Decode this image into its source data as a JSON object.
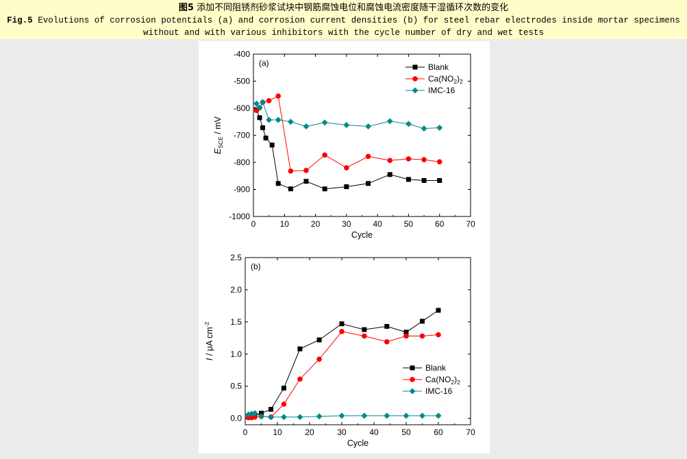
{
  "caption": {
    "cn_label": "图5",
    "cn_text": "添加不同阻锈剂砂浆试块中钢筋腐蚀电位和腐蚀电流密度随干湿循环次数的变化",
    "en_label": "Fig.5",
    "en_text": "Evolutions of corrosion potentials (a) and corrosion current densities (b) for steel rebar electrodes inside mortar specimens without and with various inhibitors with the cycle number of dry and wet tests"
  },
  "colors": {
    "Blank": "#000000",
    "CaNO2": "#ff0000",
    "IMC16": "#008b8b"
  },
  "chart_data": [
    {
      "type": "line",
      "panel_label": "(a)",
      "xlabel": "Cycle",
      "ylabel_main": "E",
      "ylabel_sub": "SCE",
      "ylabel_unit": " / mV",
      "xlim": [
        0,
        70
      ],
      "ylim": [
        -1000,
        -400
      ],
      "xticks": [
        0,
        10,
        20,
        30,
        40,
        50,
        60,
        70
      ],
      "yticks": [
        -1000,
        -900,
        -800,
        -700,
        -600,
        -500,
        -400
      ],
      "legend_position": "top-right",
      "series": [
        {
          "name": "Blank",
          "name_main": "Blank",
          "name_sub": "",
          "name_end": "",
          "color": "#000000",
          "marker": "square",
          "x": [
            1,
            2,
            3,
            4,
            6,
            8,
            12,
            17,
            23,
            30,
            37,
            44,
            50,
            55,
            60
          ],
          "y": [
            -605,
            -635,
            -672,
            -710,
            -736,
            -878,
            -898,
            -870,
            -898,
            -890,
            -878,
            -845,
            -863,
            -867,
            -867
          ]
        },
        {
          "name": "Ca(NO2)2",
          "name_main": "Ca(NO",
          "name_sub": "2",
          "name_end": ")2",
          "color": "#ff0000",
          "marker": "circle",
          "x": [
            1,
            2,
            3,
            5,
            8,
            12,
            17,
            23,
            30,
            37,
            44,
            50,
            55,
            60
          ],
          "y": [
            -608,
            -598,
            -578,
            -572,
            -555,
            -832,
            -830,
            -773,
            -820,
            -778,
            -793,
            -787,
            -790,
            -798
          ]
        },
        {
          "name": "IMC-16",
          "name_main": "IMC-16",
          "name_sub": "",
          "name_end": "",
          "color": "#008b8b",
          "marker": "diamond",
          "x": [
            1,
            2,
            3,
            5,
            8,
            12,
            17,
            23,
            30,
            37,
            44,
            50,
            55,
            60
          ],
          "y": [
            -583,
            -598,
            -578,
            -643,
            -643,
            -650,
            -667,
            -653,
            -662,
            -667,
            -648,
            -658,
            -675,
            -672
          ]
        }
      ]
    },
    {
      "type": "line",
      "panel_label": "(b)",
      "xlabel": "Cycle",
      "ylabel_main": "I",
      "ylabel_unit": " / μA cm",
      "ylabel_sup": "-2",
      "xlim": [
        0,
        70
      ],
      "ylim": [
        -0.1,
        2.5
      ],
      "xticks": [
        0,
        10,
        20,
        30,
        40,
        50,
        60,
        70
      ],
      "yticks": [
        0.0,
        0.5,
        1.0,
        1.5,
        2.0,
        2.5
      ],
      "legend_position": "center-right",
      "series": [
        {
          "name": "Blank",
          "name_main": "Blank",
          "name_sub": "",
          "name_end": "",
          "color": "#000000",
          "marker": "square",
          "x": [
            1,
            2,
            3,
            5,
            8,
            12,
            17,
            23,
            30,
            37,
            44,
            50,
            55,
            60
          ],
          "y": [
            0.02,
            0.03,
            0.05,
            0.08,
            0.14,
            0.47,
            1.08,
            1.22,
            1.47,
            1.38,
            1.43,
            1.34,
            1.51,
            1.68
          ]
        },
        {
          "name": "Ca(NO2)2",
          "name_main": "Ca(NO",
          "name_sub": "2",
          "name_end": ")2",
          "color": "#ff0000",
          "marker": "circle",
          "x": [
            1,
            2,
            3,
            5,
            8,
            12,
            17,
            23,
            30,
            37,
            44,
            50,
            55,
            60
          ],
          "y": [
            0.01,
            0.01,
            0.02,
            0.03,
            0.02,
            0.22,
            0.61,
            0.92,
            1.35,
            1.28,
            1.19,
            1.28,
            1.28,
            1.3
          ]
        },
        {
          "name": "IMC-16",
          "name_main": "IMC-16",
          "name_sub": "",
          "name_end": "",
          "color": "#008b8b",
          "marker": "diamond",
          "x": [
            1,
            2,
            3,
            5,
            8,
            12,
            17,
            23,
            30,
            37,
            44,
            50,
            55,
            60
          ],
          "y": [
            0.06,
            0.07,
            0.08,
            0.03,
            0.02,
            0.02,
            0.02,
            0.03,
            0.04,
            0.04,
            0.04,
            0.04,
            0.04,
            0.04
          ]
        }
      ]
    }
  ]
}
